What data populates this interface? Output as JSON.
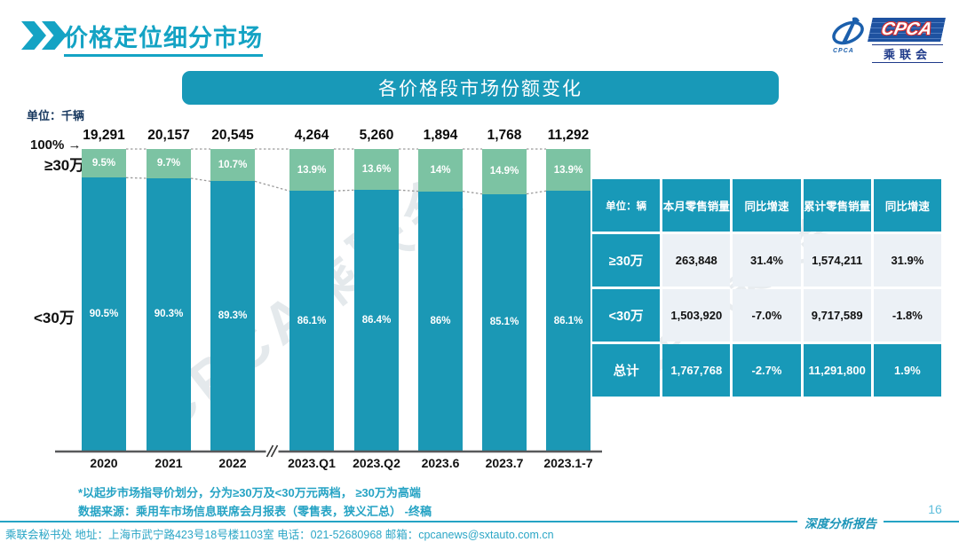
{
  "header": {
    "title": "价格定位细分市场",
    "logo": {
      "cpca": "CPCA",
      "subtitle": "乘联会",
      "small": "CPCA"
    }
  },
  "banner": {
    "title": "各价格段市场份额变化"
  },
  "chart_data": {
    "type": "bar",
    "stacked": true,
    "unit_label": "单位：千辆",
    "top_axis_label": "100%",
    "top_axis_arrow": "→",
    "left_label_top": "≥30万",
    "left_label_bottom": "<30万",
    "categories": [
      "2020",
      "2021",
      "2022",
      "2023.Q1",
      "2023.Q2",
      "2023.6",
      "2023.7",
      "2023.1-7"
    ],
    "totals": [
      "19,291",
      "20,157",
      "20,545",
      "4,264",
      "5,260",
      "1,894",
      "1,768",
      "11,292"
    ],
    "series": [
      {
        "name": "≥30万",
        "color": "#7cc3a3",
        "values": [
          9.5,
          9.7,
          10.7,
          13.9,
          13.6,
          14.0,
          14.9,
          13.9
        ]
      },
      {
        "name": "<30万",
        "color": "#1b98b5",
        "values": [
          90.5,
          90.3,
          89.3,
          86.1,
          86.4,
          86.0,
          85.1,
          86.1
        ]
      }
    ],
    "ylim": [
      0,
      100
    ],
    "grid": false,
    "axis_break_after_index": 2,
    "value_suffix": "%"
  },
  "table": {
    "headers": [
      "单位：辆",
      "本月零售销量",
      "同比增速",
      "累计零售销量",
      "同比增速"
    ],
    "rows": [
      {
        "label": "≥30万",
        "cells": [
          "263,848",
          "31.4%",
          "1,574,211",
          "31.9%"
        ],
        "highlight": false
      },
      {
        "label": "<30万",
        "cells": [
          "1,503,920",
          "-7.0%",
          "9,717,589",
          "-1.8%"
        ],
        "highlight": false
      },
      {
        "label": "总计",
        "cells": [
          "1,767,768",
          "-2.7%",
          "11,291,800",
          "1.9%"
        ],
        "highlight": true
      }
    ]
  },
  "footnotes": [
    "*以起步市场指导价划分，分为≥30万及<30万元两档， ≥30万为高端",
    "数据来源：乘用车市场信息联席会月报表（零售表，狭义汇总） -终稿"
  ],
  "footer": {
    "left": "乘联会秘书处  地址：上海市武宁路423号18号楼1103室 电话：021-52680968  邮箱：cpcanews@sxtauto.com.cn",
    "report_label": "深度分析报告",
    "page_number": "16"
  },
  "watermark": "CPCA乘联会",
  "colors": {
    "accent": "#1899b8",
    "title": "#14a3c4",
    "bar_green": "#7cc3a3",
    "bar_blue": "#1b98b5",
    "table_cell_bg": "#ecf1f6",
    "footnote": "#25a3c4",
    "unit_navy": "#17375e",
    "page_number": "#5fbedc",
    "dash_line": "#9a9a9a"
  }
}
